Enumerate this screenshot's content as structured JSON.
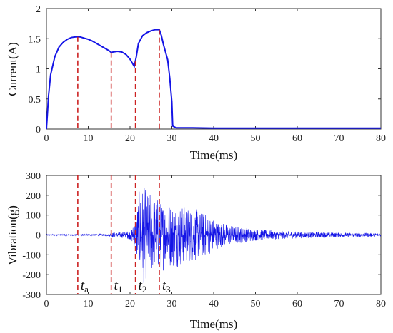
{
  "chart_data": [
    {
      "type": "line",
      "xlabel": "Time(ms)",
      "ylabel": "Current(A)",
      "xlim": [
        0,
        80
      ],
      "ylim": [
        0,
        2
      ],
      "xticks": [
        "0",
        "10",
        "20",
        "30",
        "40",
        "50",
        "60",
        "70",
        "80"
      ],
      "yticks": [
        "0",
        "0.5",
        "1",
        "1.5",
        "2"
      ],
      "color": "#1414e6",
      "grid": false,
      "series": [
        {
          "x": [
            0,
            0.5,
            1,
            2,
            3,
            4,
            5,
            6,
            7,
            8,
            9,
            10,
            11,
            12,
            13,
            14,
            15,
            15.5,
            16,
            17,
            18,
            19,
            20,
            20.5,
            21,
            21.5,
            22,
            23,
            24,
            25,
            26,
            27,
            27.5,
            28,
            29,
            29.5,
            30,
            30.2,
            31,
            35,
            40,
            50,
            60,
            70,
            80
          ],
          "y": [
            0.0,
            0.55,
            0.9,
            1.2,
            1.36,
            1.44,
            1.49,
            1.52,
            1.53,
            1.53,
            1.51,
            1.49,
            1.46,
            1.42,
            1.38,
            1.34,
            1.3,
            1.27,
            1.28,
            1.29,
            1.28,
            1.24,
            1.16,
            1.1,
            1.04,
            1.2,
            1.42,
            1.55,
            1.6,
            1.63,
            1.65,
            1.65,
            1.55,
            1.4,
            1.15,
            0.85,
            0.45,
            0.05,
            0.02,
            0.02,
            0.015,
            0.015,
            0.015,
            0.015,
            0.015
          ]
        }
      ],
      "markers": [
        7.5,
        15.5,
        21.3,
        27.0
      ]
    },
    {
      "type": "line",
      "xlabel": "Time(ms)",
      "ylabel": "Vibration(g)",
      "xlim": [
        0,
        80
      ],
      "ylim": [
        -300,
        300
      ],
      "xticks": [
        "0",
        "10",
        "20",
        "30",
        "40",
        "50",
        "60",
        "70",
        "80"
      ],
      "yticks": [
        "300",
        "200",
        "100",
        "0",
        "-100",
        "-200",
        "-300"
      ],
      "color": "#1414e6",
      "grid": false,
      "envelope_x": [
        0,
        15,
        15.5,
        18,
        20,
        21,
        22,
        23,
        24,
        26,
        28,
        30,
        32,
        34,
        36,
        38,
        40,
        42,
        45,
        50,
        55,
        60,
        70,
        80
      ],
      "envelope_y": [
        3,
        5,
        12,
        15,
        22,
        60,
        210,
        260,
        220,
        200,
        180,
        170,
        160,
        140,
        130,
        110,
        85,
        65,
        45,
        30,
        22,
        17,
        12,
        9
      ],
      "markers": [
        7.5,
        15.5,
        21.3,
        27.0
      ],
      "marker_labels": [
        {
          "base": "t",
          "sub": "a"
        },
        {
          "base": "t",
          "sub": "1"
        },
        {
          "base": "t",
          "sub": "2"
        },
        {
          "base": "t",
          "sub": "3"
        }
      ],
      "marker_color": "#cc2222"
    }
  ]
}
